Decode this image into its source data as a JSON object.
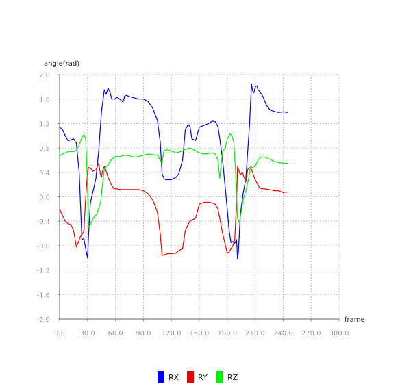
{
  "chart_data": {
    "type": "line",
    "ylabel": "angle(rad)",
    "xlabel": "frame",
    "xlim": [
      0,
      300
    ],
    "ylim": [
      -2.0,
      2.0
    ],
    "xticks": [
      "0.0",
      "30.0",
      "60.0",
      "90.0",
      "120.0",
      "150.0",
      "180.0",
      "210.0",
      "240.0",
      "270.0",
      "300.0"
    ],
    "yticks": [
      "2.0",
      "1.6",
      "1.2",
      "0.8",
      "0.4",
      "0.0",
      "-0.4",
      "-0.8",
      "-1.2",
      "-1.6",
      "-2.0"
    ],
    "grid": true,
    "legend_position": "bottom-center",
    "series": [
      {
        "name": "RX",
        "color": "#0000ee",
        "x": [
          0,
          3,
          6,
          9,
          12,
          15,
          18,
          21,
          24,
          26,
          28,
          30,
          31,
          33,
          36,
          39,
          42,
          45,
          48,
          50,
          52,
          54,
          56,
          59,
          62,
          66,
          68,
          70,
          72,
          75,
          80,
          85,
          90,
          95,
          100,
          105,
          108,
          110,
          112,
          114,
          116,
          120,
          125,
          128,
          132,
          135,
          138,
          140,
          142,
          146,
          150,
          155,
          160,
          164,
          167,
          170,
          172,
          175,
          180,
          182,
          184,
          186,
          188,
          190,
          191,
          192,
          194,
          197,
          200,
          204,
          206,
          207,
          208,
          209,
          210,
          212,
          213,
          215,
          218,
          222,
          226,
          230,
          235,
          240,
          245
        ],
        "values": [
          1.14,
          1.1,
          1.0,
          0.92,
          0.93,
          0.95,
          0.88,
          0.4,
          -0.7,
          -0.68,
          -0.85,
          -1.0,
          -0.65,
          -0.1,
          0.1,
          0.3,
          0.75,
          1.4,
          1.75,
          1.68,
          1.78,
          1.72,
          1.6,
          1.6,
          1.63,
          1.58,
          1.55,
          1.65,
          1.66,
          1.64,
          1.62,
          1.6,
          1.6,
          1.56,
          1.45,
          1.25,
          0.9,
          0.38,
          0.3,
          0.28,
          0.28,
          0.28,
          0.32,
          0.38,
          0.6,
          1.1,
          1.18,
          1.15,
          0.95,
          0.92,
          1.14,
          1.17,
          1.2,
          1.24,
          1.23,
          1.15,
          0.95,
          0.6,
          -0.2,
          -0.55,
          -0.75,
          -0.73,
          -0.76,
          -0.7,
          -1.02,
          -0.9,
          -0.3,
          0.05,
          0.3,
          1.2,
          1.85,
          1.75,
          1.7,
          1.72,
          1.8,
          1.82,
          1.75,
          1.72,
          1.65,
          1.5,
          1.42,
          1.4,
          1.38,
          1.39,
          1.38
        ]
      },
      {
        "name": "RY",
        "color": "#ee0000",
        "x": [
          0,
          3,
          6,
          9,
          12,
          15,
          18,
          20,
          22,
          24,
          26,
          28,
          30,
          31,
          33,
          36,
          39,
          42,
          44,
          45,
          46,
          48,
          50,
          52,
          54,
          56,
          58,
          60,
          62,
          65,
          70,
          75,
          80,
          85,
          90,
          95,
          100,
          105,
          108,
          110,
          112,
          114,
          116,
          118,
          120,
          125,
          128,
          132,
          135,
          138,
          140,
          142,
          146,
          150,
          155,
          160,
          164,
          167,
          170,
          172,
          175,
          180,
          182,
          184,
          186,
          188,
          190,
          191,
          192,
          194,
          196,
          198,
          200,
          202,
          204,
          206,
          208,
          210,
          212,
          215,
          220,
          225,
          230,
          235,
          240,
          245
        ],
        "values": [
          -0.2,
          -0.3,
          -0.4,
          -0.44,
          -0.45,
          -0.55,
          -0.82,
          -0.75,
          -0.66,
          -0.62,
          -0.56,
          -0.02,
          0.4,
          0.48,
          0.47,
          0.42,
          0.44,
          0.55,
          0.36,
          0.32,
          0.42,
          0.5,
          0.42,
          0.32,
          0.25,
          0.18,
          0.14,
          0.13,
          0.13,
          0.12,
          0.12,
          0.12,
          0.12,
          0.12,
          0.1,
          0.05,
          -0.05,
          -0.25,
          -0.6,
          -0.96,
          -0.95,
          -0.94,
          -0.93,
          -0.93,
          -0.93,
          -0.92,
          -0.88,
          -0.85,
          -0.55,
          -0.45,
          -0.4,
          -0.38,
          -0.35,
          -0.12,
          -0.09,
          -0.09,
          -0.1,
          -0.12,
          -0.2,
          -0.35,
          -0.6,
          -0.92,
          -0.9,
          -0.85,
          -0.8,
          -0.7,
          -0.1,
          0.5,
          0.45,
          0.36,
          0.4,
          0.32,
          0.25,
          0.45,
          0.48,
          0.45,
          0.36,
          0.28,
          0.22,
          0.14,
          0.13,
          0.12,
          0.1,
          0.1,
          0.07,
          0.08
        ]
      },
      {
        "name": "RZ",
        "color": "#00ee00",
        "x": [
          0,
          3,
          6,
          9,
          12,
          15,
          18,
          21,
          24,
          26,
          28,
          30,
          31,
          33,
          36,
          40,
          44,
          46,
          48,
          50,
          52,
          55,
          60,
          65,
          70,
          75,
          80,
          85,
          90,
          95,
          100,
          105,
          108,
          110,
          112,
          116,
          120,
          125,
          130,
          135,
          140,
          145,
          150,
          155,
          160,
          164,
          167,
          170,
          172,
          175,
          178,
          180,
          183,
          185,
          187,
          189,
          191,
          193,
          195,
          197,
          200,
          203,
          205,
          207,
          210,
          213,
          216,
          220,
          225,
          230,
          235,
          240,
          245
        ],
        "values": [
          0.67,
          0.7,
          0.72,
          0.74,
          0.74,
          0.74,
          0.76,
          0.85,
          0.97,
          1.02,
          0.95,
          0.2,
          -0.5,
          -0.45,
          -0.35,
          -0.28,
          -0.1,
          0.2,
          0.45,
          0.5,
          0.52,
          0.6,
          0.66,
          0.66,
          0.68,
          0.67,
          0.65,
          0.66,
          0.68,
          0.7,
          0.69,
          0.68,
          0.6,
          0.55,
          0.76,
          0.77,
          0.75,
          0.72,
          0.74,
          0.78,
          0.8,
          0.76,
          0.72,
          0.7,
          0.71,
          0.72,
          0.7,
          0.6,
          0.3,
          0.75,
          0.8,
          0.95,
          1.03,
          1.0,
          0.9,
          0.4,
          -0.35,
          -0.42,
          -0.25,
          -0.05,
          0.1,
          0.3,
          0.5,
          0.48,
          0.5,
          0.6,
          0.65,
          0.65,
          0.62,
          0.58,
          0.56,
          0.55,
          0.55
        ]
      }
    ]
  }
}
